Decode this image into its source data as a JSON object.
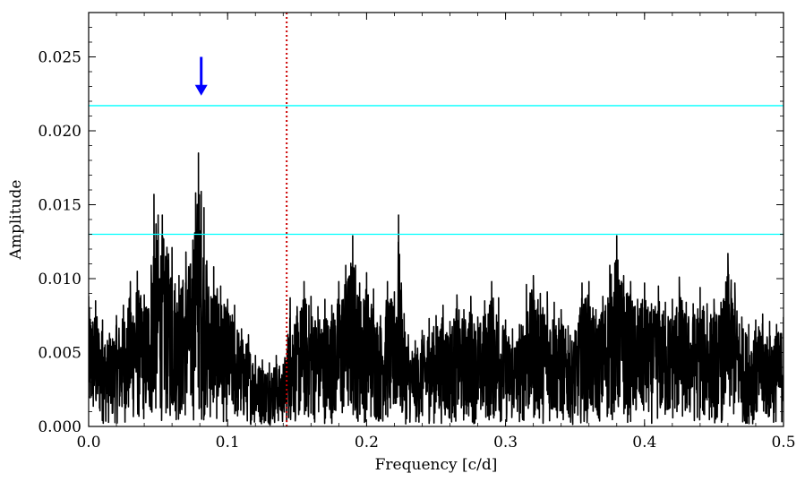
{
  "chart_data": {
    "type": "line",
    "title": "",
    "xlabel": "Frequency [c/d]",
    "ylabel": "Amplitude",
    "xlim": [
      0.0,
      0.5
    ],
    "ylim": [
      0.0,
      0.028
    ],
    "grid": false,
    "x_ticks": [
      0.0,
      0.1,
      0.2,
      0.3,
      0.4,
      0.5
    ],
    "x_tick_labels": [
      "0.0",
      "0.1",
      "0.2",
      "0.3",
      "0.4",
      "0.5"
    ],
    "y_ticks": [
      0.0,
      0.005,
      0.01,
      0.015,
      0.02,
      0.025
    ],
    "y_tick_labels": [
      "0.000",
      "0.005",
      "0.010",
      "0.015",
      "0.020",
      "0.025"
    ],
    "series": [
      {
        "color": "#000000",
        "x": [
          0.0,
          0.005,
          0.01,
          0.015,
          0.02,
          0.025,
          0.03,
          0.035,
          0.04,
          0.045,
          0.047,
          0.05,
          0.053,
          0.06,
          0.065,
          0.07,
          0.075,
          0.077,
          0.079,
          0.081,
          0.083,
          0.085,
          0.09,
          0.095,
          0.1,
          0.105,
          0.11,
          0.115,
          0.12,
          0.125,
          0.13,
          0.135,
          0.14,
          0.145,
          0.15,
          0.155,
          0.16,
          0.165,
          0.17,
          0.175,
          0.18,
          0.185,
          0.19,
          0.192,
          0.195,
          0.2,
          0.205,
          0.21,
          0.215,
          0.22,
          0.223,
          0.225,
          0.23,
          0.235,
          0.24,
          0.245,
          0.25,
          0.255,
          0.26,
          0.265,
          0.27,
          0.275,
          0.28,
          0.285,
          0.29,
          0.295,
          0.3,
          0.305,
          0.31,
          0.315,
          0.32,
          0.325,
          0.33,
          0.335,
          0.34,
          0.345,
          0.35,
          0.355,
          0.36,
          0.365,
          0.37,
          0.375,
          0.38,
          0.385,
          0.39,
          0.395,
          0.4,
          0.405,
          0.41,
          0.415,
          0.42,
          0.425,
          0.43,
          0.435,
          0.44,
          0.445,
          0.45,
          0.455,
          0.46,
          0.465,
          0.47,
          0.475,
          0.48,
          0.485,
          0.49,
          0.495,
          0.5
        ],
        "values": [
          0.0088,
          0.0085,
          0.0072,
          0.0063,
          0.0075,
          0.0082,
          0.0098,
          0.0105,
          0.0089,
          0.0109,
          0.0157,
          0.0143,
          0.0143,
          0.0121,
          0.0102,
          0.0118,
          0.0126,
          0.0158,
          0.0185,
          0.0159,
          0.0148,
          0.0112,
          0.0108,
          0.0095,
          0.0086,
          0.0082,
          0.0066,
          0.0062,
          0.0048,
          0.0045,
          0.0043,
          0.0048,
          0.0042,
          0.0087,
          0.0081,
          0.0098,
          0.0088,
          0.0081,
          0.0086,
          0.0082,
          0.0098,
          0.0109,
          0.0129,
          0.0109,
          0.0097,
          0.0104,
          0.0093,
          0.0075,
          0.0098,
          0.0091,
          0.0143,
          0.0097,
          0.0062,
          0.0058,
          0.0065,
          0.0073,
          0.0075,
          0.0082,
          0.0071,
          0.0089,
          0.0079,
          0.0088,
          0.0074,
          0.0085,
          0.0098,
          0.0087,
          0.0072,
          0.0066,
          0.0069,
          0.0096,
          0.0102,
          0.009,
          0.0091,
          0.0084,
          0.0079,
          0.0068,
          0.0065,
          0.0097,
          0.0098,
          0.0079,
          0.0088,
          0.0109,
          0.0129,
          0.0102,
          0.0098,
          0.0086,
          0.0097,
          0.0083,
          0.0095,
          0.0084,
          0.0086,
          0.0101,
          0.0084,
          0.0083,
          0.0094,
          0.0083,
          0.0086,
          0.0084,
          0.0117,
          0.0097,
          0.0074,
          0.0069,
          0.0072,
          0.0076,
          0.0071,
          0.0069,
          0.0074
        ]
      }
    ],
    "hlines": [
      {
        "y": 0.0217,
        "color": "#00ffff"
      },
      {
        "y": 0.013,
        "color": "#00ffff"
      }
    ],
    "vlines": [
      {
        "x": 0.1425,
        "color": "#cc0000",
        "style": "dotted"
      }
    ],
    "annotations": [
      {
        "type": "arrow",
        "x": 0.081,
        "y_from": 0.025,
        "y_to": 0.0225,
        "color": "#0000ff"
      }
    ]
  }
}
